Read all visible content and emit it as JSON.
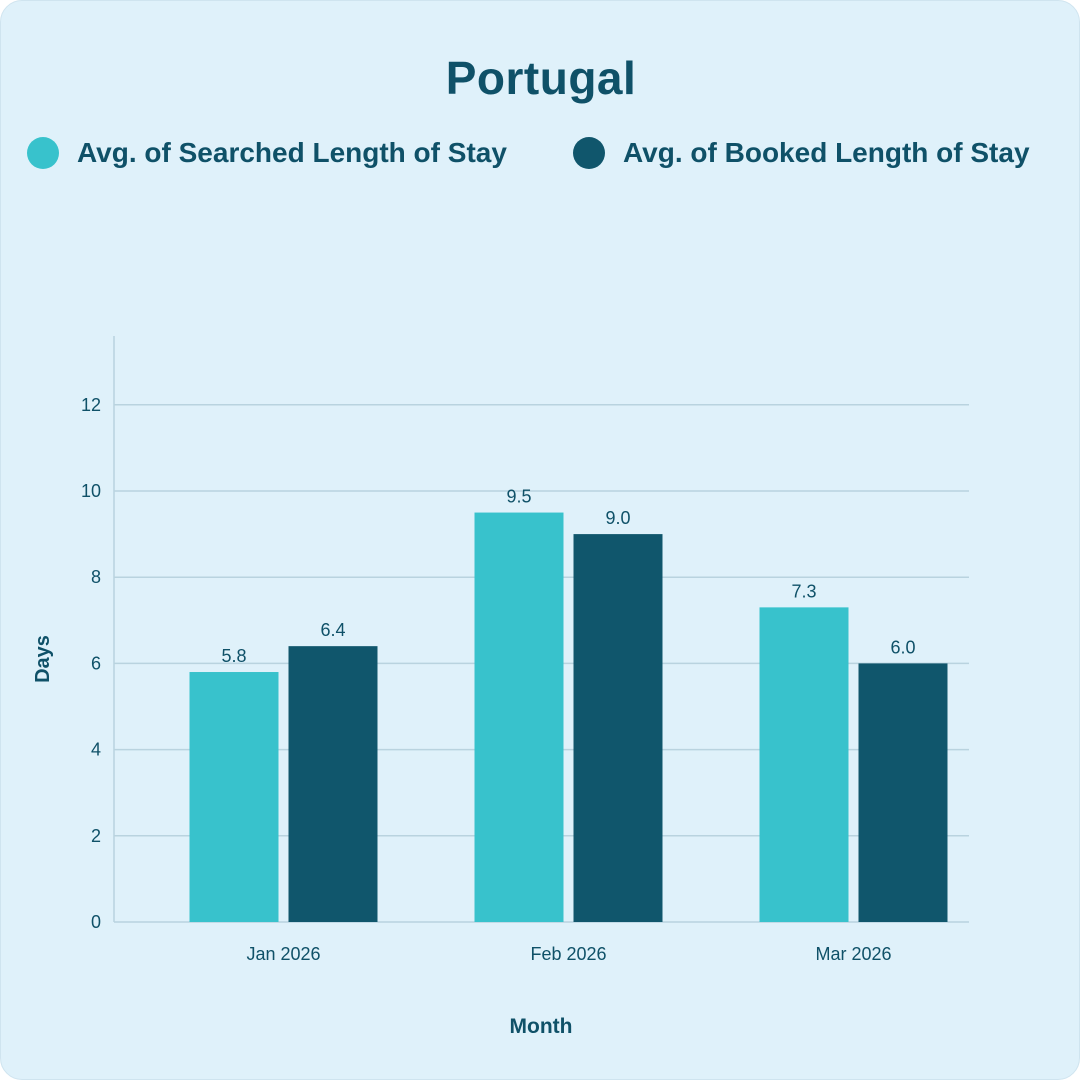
{
  "chart_data": {
    "type": "bar",
    "title": "Portugal",
    "categories": [
      "Jan 2026",
      "Feb 2026",
      "Mar 2026"
    ],
    "series": [
      {
        "name": "Avg. of Searched Length of Stay",
        "color": "#38c2cc",
        "values": [
          5.8,
          9.5,
          7.3
        ]
      },
      {
        "name": "Avg. of Booked Length of Stay",
        "color": "#10566c",
        "values": [
          6.4,
          9.0,
          6.0
        ]
      }
    ],
    "xlabel": "Month",
    "ylabel": "Days",
    "ylim": [
      0,
      13.5
    ],
    "yticks": [
      0,
      2,
      4,
      6,
      8,
      10,
      12
    ],
    "grid": true,
    "legend": "top"
  }
}
